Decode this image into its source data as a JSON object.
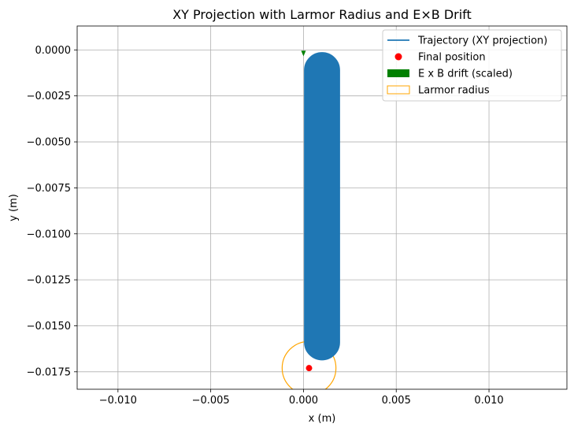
{
  "chart_data": {
    "type": "scatter",
    "title": "XY Projection with Larmor Radius and E×B Drift",
    "xlabel": "x (m)",
    "ylabel": "y (m)",
    "xlim": [
      -0.0122,
      0.0142
    ],
    "ylim": [
      -0.01845,
      0.0013
    ],
    "x_ticks": [
      -0.01,
      -0.005,
      0.0,
      0.005,
      0.01
    ],
    "x_tick_labels": [
      "−0.010",
      "−0.005",
      "0.000",
      "0.005",
      "0.010"
    ],
    "y_ticks": [
      0.0,
      -0.0025,
      -0.005,
      -0.0075,
      -0.01,
      -0.0125,
      -0.015,
      -0.0175
    ],
    "y_tick_labels": [
      "0.0000",
      "−0.0025",
      "−0.0050",
      "−0.0075",
      "−0.0100",
      "−0.0125",
      "−0.0150",
      "−0.0175"
    ],
    "grid": true,
    "legend_position": "top-right",
    "series": [
      {
        "name": "Trajectory (XY projection)",
        "kind": "line",
        "color": "#1f77b4",
        "x": [
          0.001,
          0.001
        ],
        "y": [
          -0.0011,
          -0.0159
        ],
        "envelope_radius": 0.00095
      },
      {
        "name": "Final position",
        "kind": "scatter",
        "color": "#ff0000",
        "x": [
          0.0003
        ],
        "y": [
          -0.0173
        ]
      },
      {
        "name": "E x B drift (scaled)",
        "kind": "arrow",
        "color": "#008000",
        "x": [
          0.0,
          0.0
        ],
        "y": [
          0.0,
          0.0
        ]
      },
      {
        "name": "Larmor radius",
        "kind": "circle",
        "color": "#ffa500",
        "center": [
          0.0003,
          -0.0173
        ],
        "radius": 0.00145
      }
    ]
  }
}
